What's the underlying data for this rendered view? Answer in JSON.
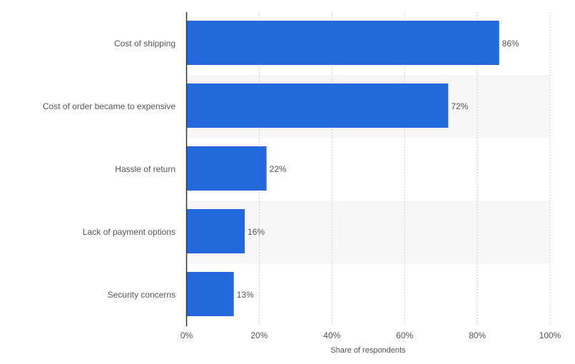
{
  "chart_data": {
    "type": "bar",
    "orientation": "horizontal",
    "categories": [
      "Cost of shipping",
      "Cost of order became to expensive",
      "Hassle of return",
      "Lack of payment options",
      "Security concerns"
    ],
    "values": [
      86,
      72,
      22,
      16,
      13
    ],
    "data_labels": [
      "86%",
      "72%",
      "22%",
      "16%",
      "13%"
    ],
    "xlabel": "Share of respondents",
    "ylabel": "",
    "xlim": [
      0,
      100
    ],
    "xticks": [
      0,
      20,
      40,
      60,
      80,
      100
    ],
    "xtick_labels": [
      "0%",
      "20%",
      "40%",
      "60%",
      "80%",
      "100%"
    ],
    "grid": true,
    "bar_color": "#2369dc",
    "band_color": "#f7f7f7"
  }
}
